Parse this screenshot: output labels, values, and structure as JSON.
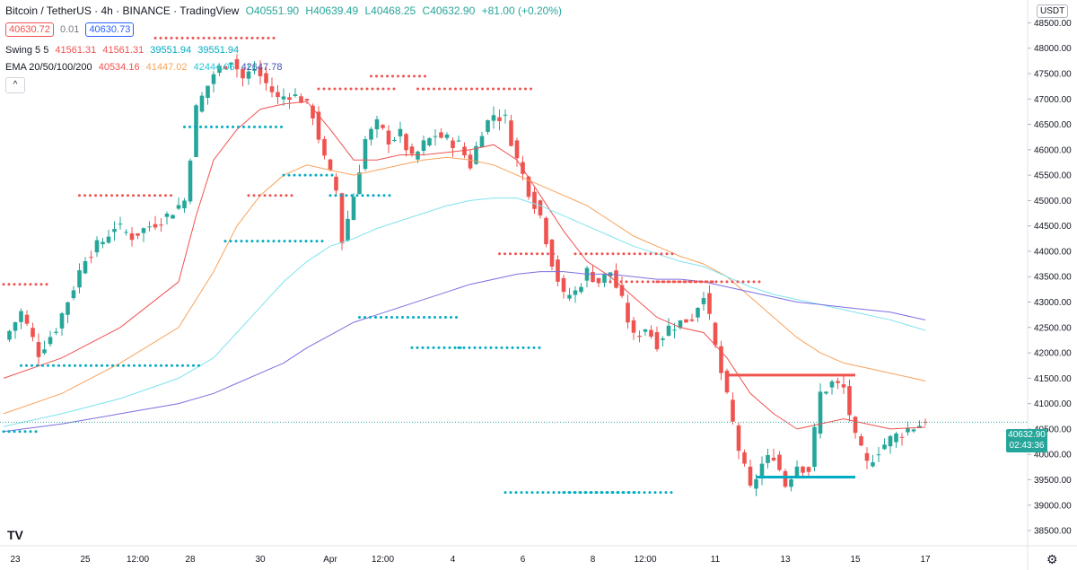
{
  "header": {
    "title": "Bitcoin / TetherUS · 4h · BINANCE · TradingView",
    "ohlc": {
      "o": "O40551.90",
      "h": "H40639.49",
      "l": "L40468.25",
      "c": "C40632.90",
      "change": "+81.00 (+0.20%)"
    },
    "bid": "40630.72",
    "spread": "0.01",
    "ask": "40630.73"
  },
  "indicators": {
    "swing": {
      "label": "Swing 5 5",
      "v1": "41561.31",
      "v2": "41561.31",
      "v3": "39551.94",
      "v4": "39551.94"
    },
    "ema": {
      "label": "EMA 20/50/100/200",
      "v20": "40534.16",
      "v50": "41447.02",
      "v100": "42444.06",
      "v200": "42647.78"
    }
  },
  "ui": {
    "collapse": "^",
    "currency": "USDT",
    "logo": "TV",
    "gear": "⚙"
  },
  "last_price": {
    "value": "40632.90",
    "countdown": "02:43:36"
  },
  "colors": {
    "up": "#26a69a",
    "down": "#ef5350",
    "ema20": "#ef5350",
    "ema50": "#f7a35c",
    "ema100": "#7fe3ee",
    "ema200": "#7b6fe0",
    "swing_high": "#ef5350",
    "swing_low": "#00acc1"
  },
  "chart_data": {
    "type": "candlestick",
    "x_ticks": [
      "23",
      "25",
      "12:00",
      "28",
      "30",
      "Apr",
      "12:00",
      "4",
      "6",
      "8",
      "12:00",
      "11",
      "13",
      "15",
      "17"
    ],
    "x_tick_bars": [
      2,
      14,
      23,
      32,
      44,
      56,
      65,
      77,
      89,
      101,
      110,
      122,
      134,
      146,
      158
    ],
    "y_ticks": [
      38500,
      39000,
      39500,
      40000,
      40500,
      41000,
      41500,
      42000,
      42500,
      43000,
      43500,
      44000,
      44500,
      45000,
      45500,
      46000,
      46500,
      47000,
      47500,
      48000,
      48500
    ],
    "ylim": [
      38200,
      48950
    ],
    "x_range_bars": [
      0,
      163
    ],
    "close_path": [
      [
        0,
        42250
      ],
      [
        3,
        42800
      ],
      [
        6,
        42000
      ],
      [
        9,
        42500
      ],
      [
        12,
        43300
      ],
      [
        14,
        43900
      ],
      [
        17,
        44200
      ],
      [
        19,
        44500
      ],
      [
        22,
        44300
      ],
      [
        25,
        44500
      ],
      [
        28,
        44700
      ],
      [
        31,
        45000
      ],
      [
        33,
        46800
      ],
      [
        36,
        47500
      ],
      [
        39,
        47800
      ],
      [
        41,
        47400
      ],
      [
        43,
        47600
      ],
      [
        45,
        47300
      ],
      [
        47,
        47000
      ],
      [
        49,
        47100
      ],
      [
        51,
        47000
      ],
      [
        53,
        46700
      ],
      [
        55,
        45800
      ],
      [
        57,
        45200
      ],
      [
        58,
        44200
      ],
      [
        60,
        45100
      ],
      [
        62,
        46200
      ],
      [
        64,
        46500
      ],
      [
        66,
        46200
      ],
      [
        68,
        46300
      ],
      [
        70,
        45800
      ],
      [
        72,
        46100
      ],
      [
        74,
        46300
      ],
      [
        76,
        46200
      ],
      [
        78,
        46100
      ],
      [
        80,
        45700
      ],
      [
        82,
        46400
      ],
      [
        84,
        46700
      ],
      [
        86,
        46600
      ],
      [
        88,
        45800
      ],
      [
        90,
        45200
      ],
      [
        92,
        44700
      ],
      [
        94,
        43800
      ],
      [
        96,
        43100
      ],
      [
        98,
        43200
      ],
      [
        100,
        43600
      ],
      [
        102,
        43400
      ],
      [
        104,
        43600
      ],
      [
        106,
        43000
      ],
      [
        108,
        42300
      ],
      [
        110,
        42500
      ],
      [
        112,
        42200
      ],
      [
        114,
        42500
      ],
      [
        116,
        42600
      ],
      [
        118,
        42700
      ],
      [
        120,
        43200
      ],
      [
        122,
        42100
      ],
      [
        124,
        41100
      ],
      [
        126,
        40100
      ],
      [
        128,
        39300
      ],
      [
        130,
        39800
      ],
      [
        132,
        40000
      ],
      [
        134,
        39400
      ],
      [
        136,
        39800
      ],
      [
        138,
        39700
      ],
      [
        140,
        41200
      ],
      [
        142,
        41400
      ],
      [
        144,
        41300
      ],
      [
        146,
        40300
      ],
      [
        148,
        39800
      ],
      [
        150,
        40100
      ],
      [
        152,
        40300
      ],
      [
        155,
        40500
      ],
      [
        158,
        40632.9
      ]
    ],
    "ema": [
      {
        "name": "EMA 20",
        "points": [
          [
            0,
            41500
          ],
          [
            10,
            41900
          ],
          [
            20,
            42500
          ],
          [
            30,
            43400
          ],
          [
            33,
            44700
          ],
          [
            36,
            45800
          ],
          [
            40,
            46400
          ],
          [
            44,
            46800
          ],
          [
            48,
            46900
          ],
          [
            52,
            46950
          ],
          [
            56,
            46400
          ],
          [
            60,
            45800
          ],
          [
            64,
            45800
          ],
          [
            68,
            45900
          ],
          [
            72,
            45900
          ],
          [
            76,
            45950
          ],
          [
            80,
            46000
          ],
          [
            84,
            46100
          ],
          [
            88,
            45800
          ],
          [
            92,
            45100
          ],
          [
            96,
            44400
          ],
          [
            100,
            43800
          ],
          [
            104,
            43500
          ],
          [
            108,
            43100
          ],
          [
            112,
            42700
          ],
          [
            116,
            42500
          ],
          [
            120,
            42400
          ],
          [
            124,
            41900
          ],
          [
            128,
            41200
          ],
          [
            132,
            40800
          ],
          [
            136,
            40500
          ],
          [
            140,
            40600
          ],
          [
            144,
            40700
          ],
          [
            148,
            40600
          ],
          [
            152,
            40500
          ],
          [
            158,
            40534
          ]
        ]
      },
      {
        "name": "EMA 50",
        "points": [
          [
            0,
            40800
          ],
          [
            10,
            41200
          ],
          [
            20,
            41800
          ],
          [
            30,
            42500
          ],
          [
            36,
            43600
          ],
          [
            40,
            44500
          ],
          [
            44,
            45100
          ],
          [
            48,
            45500
          ],
          [
            52,
            45700
          ],
          [
            56,
            45600
          ],
          [
            60,
            45500
          ],
          [
            64,
            45600
          ],
          [
            68,
            45700
          ],
          [
            72,
            45800
          ],
          [
            76,
            45850
          ],
          [
            80,
            45800
          ],
          [
            84,
            45700
          ],
          [
            88,
            45500
          ],
          [
            92,
            45300
          ],
          [
            96,
            45100
          ],
          [
            100,
            44900
          ],
          [
            104,
            44600
          ],
          [
            108,
            44300
          ],
          [
            112,
            44100
          ],
          [
            116,
            43900
          ],
          [
            120,
            43750
          ],
          [
            124,
            43500
          ],
          [
            128,
            43100
          ],
          [
            132,
            42700
          ],
          [
            136,
            42300
          ],
          [
            140,
            42000
          ],
          [
            144,
            41800
          ],
          [
            148,
            41700
          ],
          [
            152,
            41600
          ],
          [
            158,
            41447
          ]
        ]
      },
      {
        "name": "EMA 100",
        "points": [
          [
            0,
            40550
          ],
          [
            10,
            40800
          ],
          [
            20,
            41100
          ],
          [
            30,
            41500
          ],
          [
            36,
            41900
          ],
          [
            40,
            42400
          ],
          [
            44,
            42900
          ],
          [
            48,
            43400
          ],
          [
            52,
            43800
          ],
          [
            56,
            44100
          ],
          [
            60,
            44250
          ],
          [
            64,
            44450
          ],
          [
            68,
            44600
          ],
          [
            72,
            44750
          ],
          [
            76,
            44900
          ],
          [
            80,
            45000
          ],
          [
            84,
            45050
          ],
          [
            88,
            45050
          ],
          [
            92,
            44900
          ],
          [
            96,
            44700
          ],
          [
            100,
            44500
          ],
          [
            104,
            44300
          ],
          [
            108,
            44100
          ],
          [
            112,
            43950
          ],
          [
            116,
            43800
          ],
          [
            120,
            43700
          ],
          [
            124,
            43500
          ],
          [
            128,
            43300
          ],
          [
            132,
            43150
          ],
          [
            136,
            43050
          ],
          [
            140,
            42950
          ],
          [
            144,
            42850
          ],
          [
            148,
            42750
          ],
          [
            152,
            42650
          ],
          [
            158,
            42444
          ]
        ]
      },
      {
        "name": "EMA 200",
        "points": [
          [
            0,
            40450
          ],
          [
            10,
            40600
          ],
          [
            20,
            40800
          ],
          [
            30,
            41000
          ],
          [
            36,
            41200
          ],
          [
            40,
            41400
          ],
          [
            44,
            41600
          ],
          [
            48,
            41800
          ],
          [
            52,
            42100
          ],
          [
            56,
            42350
          ],
          [
            60,
            42600
          ],
          [
            64,
            42750
          ],
          [
            68,
            42900
          ],
          [
            72,
            43050
          ],
          [
            76,
            43200
          ],
          [
            80,
            43350
          ],
          [
            84,
            43450
          ],
          [
            88,
            43550
          ],
          [
            92,
            43600
          ],
          [
            96,
            43600
          ],
          [
            100,
            43550
          ],
          [
            104,
            43550
          ],
          [
            108,
            43500
          ],
          [
            112,
            43450
          ],
          [
            116,
            43450
          ],
          [
            120,
            43400
          ],
          [
            124,
            43300
          ],
          [
            128,
            43200
          ],
          [
            132,
            43100
          ],
          [
            136,
            43000
          ],
          [
            140,
            42950
          ],
          [
            144,
            42900
          ],
          [
            148,
            42850
          ],
          [
            152,
            42800
          ],
          [
            158,
            42647.78
          ]
        ]
      }
    ],
    "swing_highs": [
      [
        0,
        8,
        43350
      ],
      [
        13,
        29,
        45100
      ],
      [
        26,
        47,
        48200
      ],
      [
        42,
        50,
        45100
      ],
      [
        54,
        67,
        47200
      ],
      [
        63,
        73,
        47450
      ],
      [
        71,
        91,
        47200
      ],
      [
        85,
        95,
        43950
      ],
      [
        98,
        115,
        43950
      ],
      [
        104,
        122,
        43400
      ],
      [
        112,
        130,
        43400
      ],
      [
        124,
        146,
        41561.31
      ]
    ],
    "swing_lows": [
      [
        0,
        6,
        40450
      ],
      [
        3,
        34,
        41750
      ],
      [
        31,
        48,
        46450
      ],
      [
        38,
        55,
        44200
      ],
      [
        48,
        57,
        45500
      ],
      [
        56,
        67,
        45100
      ],
      [
        61,
        78,
        42700
      ],
      [
        70,
        79,
        42100
      ],
      [
        78,
        92,
        42100
      ],
      [
        86,
        109,
        39250
      ],
      [
        96,
        115,
        39250
      ],
      [
        129,
        146,
        39551.94
      ]
    ]
  }
}
